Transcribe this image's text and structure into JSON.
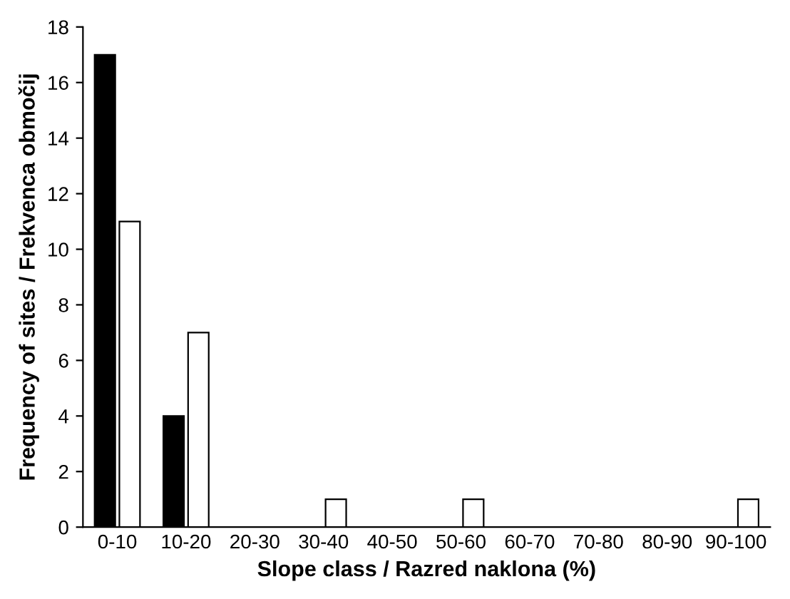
{
  "chart_data": {
    "type": "bar",
    "xlabel": "Slope class / Razred naklona (%)",
    "ylabel": "Frequency of sites / Frekvenca območij",
    "categories": [
      "0-10",
      "10-20",
      "20-30",
      "30-40",
      "40-50",
      "50-60",
      "60-70",
      "70-80",
      "80-90",
      "90-100"
    ],
    "series": [
      {
        "color": "#000000",
        "values": [
          17,
          4,
          0,
          0,
          0,
          0,
          0,
          0,
          0,
          0
        ]
      },
      {
        "color": "#ffffff",
        "values": [
          11,
          7,
          0,
          1,
          0,
          1,
          0,
          0,
          0,
          1
        ]
      }
    ],
    "ylim": [
      0,
      18
    ],
    "yticks": [
      0,
      2,
      4,
      6,
      8,
      10,
      12,
      14,
      16,
      18
    ],
    "grid": false,
    "legend": false
  }
}
